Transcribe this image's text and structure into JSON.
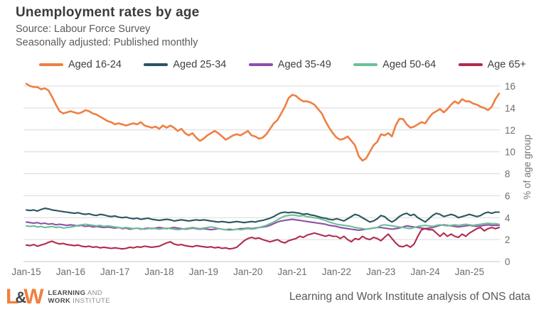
{
  "header": {
    "title": "Unemployment rates by age",
    "source": "Source: Labour Force Survey",
    "note": "Seasonally adjusted: Published monthly"
  },
  "chart_data": {
    "type": "line",
    "x_frequency": "monthly",
    "x_start": "Jan-2015",
    "x_end": "Sep-2025",
    "x_tick_labels": [
      "Jan-15",
      "Jan-16",
      "Jan-17",
      "Jan-18",
      "Jan-19",
      "Jan-20",
      "Jan-21",
      "Jan-22",
      "Jan-23",
      "Jan-24",
      "Jan-25"
    ],
    "x_tick_month_indices": [
      0,
      12,
      24,
      36,
      48,
      60,
      72,
      84,
      96,
      108,
      120
    ],
    "ylabel": "% of age group",
    "ylim": [
      0,
      16
    ],
    "y_ticks": [
      0,
      2,
      4,
      6,
      8,
      10,
      12,
      14,
      16
    ],
    "grid": "horizontal",
    "legend_position": "top",
    "series": [
      {
        "name": "Aged 16-24",
        "color": "#EE8043",
        "values": [
          16.2,
          16.0,
          15.9,
          15.9,
          15.7,
          15.8,
          15.6,
          15.0,
          14.3,
          13.7,
          13.5,
          13.6,
          13.7,
          13.6,
          13.5,
          13.6,
          13.8,
          13.7,
          13.5,
          13.4,
          13.2,
          13.0,
          12.8,
          12.7,
          12.5,
          12.6,
          12.5,
          12.4,
          12.5,
          12.6,
          12.5,
          12.7,
          12.4,
          12.3,
          12.2,
          12.3,
          12.1,
          12.4,
          12.2,
          12.4,
          12.2,
          11.9,
          12.1,
          11.7,
          11.5,
          11.7,
          11.3,
          11.0,
          11.2,
          11.5,
          11.7,
          11.9,
          11.7,
          11.4,
          11.1,
          11.3,
          11.5,
          11.6,
          11.5,
          11.7,
          11.9,
          11.5,
          11.4,
          11.2,
          11.3,
          11.6,
          12.1,
          12.6,
          12.9,
          13.5,
          14.1,
          14.9,
          15.2,
          15.1,
          14.8,
          14.6,
          14.6,
          14.5,
          14.3,
          13.9,
          13.5,
          12.8,
          12.2,
          11.7,
          11.3,
          11.1,
          11.2,
          11.4,
          11.0,
          10.6,
          9.6,
          9.2,
          9.4,
          10.0,
          10.6,
          10.9,
          11.6,
          11.5,
          11.7,
          11.4,
          12.4,
          13.0,
          13.0,
          12.5,
          12.2,
          12.3,
          12.5,
          12.7,
          12.6,
          13.1,
          13.5,
          13.7,
          13.9,
          13.6,
          13.9,
          14.3,
          14.6,
          14.4,
          14.8,
          14.6,
          14.6,
          14.4,
          14.3,
          14.1,
          14.0,
          13.8,
          14.1,
          14.8,
          15.3
        ]
      },
      {
        "name": "Aged 25-34",
        "color": "#2A5560",
        "values": [
          4.7,
          4.65,
          4.7,
          4.6,
          4.75,
          4.85,
          4.8,
          4.7,
          4.65,
          4.6,
          4.55,
          4.5,
          4.45,
          4.4,
          4.45,
          4.35,
          4.3,
          4.35,
          4.25,
          4.2,
          4.3,
          4.25,
          4.15,
          4.1,
          4.15,
          4.05,
          4.0,
          4.05,
          3.95,
          3.9,
          3.95,
          3.85,
          3.9,
          3.95,
          3.85,
          3.8,
          3.75,
          3.8,
          3.85,
          3.8,
          3.7,
          3.75,
          3.8,
          3.75,
          3.7,
          3.75,
          3.8,
          3.75,
          3.8,
          3.75,
          3.7,
          3.65,
          3.6,
          3.65,
          3.6,
          3.55,
          3.6,
          3.65,
          3.6,
          3.55,
          3.6,
          3.65,
          3.6,
          3.7,
          3.75,
          3.85,
          3.95,
          4.1,
          4.3,
          4.45,
          4.5,
          4.45,
          4.5,
          4.45,
          4.4,
          4.3,
          4.35,
          4.25,
          4.2,
          4.1,
          4.0,
          3.95,
          3.85,
          3.8,
          3.9,
          3.8,
          3.7,
          3.9,
          4.1,
          4.3,
          4.2,
          4.0,
          3.8,
          3.6,
          3.7,
          3.9,
          4.2,
          4.1,
          3.8,
          3.6,
          3.8,
          4.1,
          4.3,
          4.4,
          4.2,
          4.3,
          4.0,
          3.8,
          3.6,
          3.9,
          4.2,
          4.4,
          4.3,
          4.1,
          4.2,
          4.3,
          4.2,
          4.0,
          4.1,
          4.2,
          4.3,
          4.2,
          4.1,
          4.2,
          4.4,
          4.5,
          4.4,
          4.5,
          4.5
        ]
      },
      {
        "name": "Aged 35-49",
        "color": "#8F4FA8",
        "values": [
          3.6,
          3.55,
          3.5,
          3.55,
          3.45,
          3.5,
          3.4,
          3.45,
          3.35,
          3.4,
          3.35,
          3.3,
          3.35,
          3.3,
          3.25,
          3.3,
          3.2,
          3.25,
          3.15,
          3.2,
          3.15,
          3.1,
          3.15,
          3.1,
          3.05,
          3.1,
          3.0,
          3.05,
          2.95,
          3.0,
          3.05,
          2.95,
          3.0,
          3.05,
          3.0,
          3.05,
          3.1,
          3.05,
          3.0,
          3.05,
          3.1,
          3.05,
          3.0,
          2.95,
          3.0,
          3.05,
          3.0,
          2.95,
          3.0,
          2.95,
          2.9,
          2.95,
          3.0,
          2.95,
          2.9,
          2.95,
          2.9,
          2.95,
          3.0,
          3.0,
          3.05,
          3.0,
          3.05,
          3.1,
          3.15,
          3.2,
          3.3,
          3.45,
          3.6,
          3.7,
          3.75,
          3.8,
          3.85,
          3.8,
          3.75,
          3.7,
          3.65,
          3.6,
          3.55,
          3.5,
          3.45,
          3.4,
          3.3,
          3.25,
          3.2,
          3.1,
          3.05,
          3.0,
          2.95,
          2.9,
          2.85,
          2.9,
          2.95,
          3.0,
          3.05,
          3.1,
          3.1,
          3.05,
          3.0,
          2.95,
          3.0,
          3.05,
          3.15,
          3.25,
          3.2,
          3.15,
          3.1,
          3.05,
          3.0,
          3.05,
          3.1,
          3.2,
          3.3,
          3.35,
          3.3,
          3.25,
          3.2,
          3.15,
          3.2,
          3.25,
          3.3,
          3.25,
          3.2,
          3.25,
          3.3,
          3.35,
          3.3,
          3.3,
          3.3
        ]
      },
      {
        "name": "Aged 50-64",
        "color": "#6CC096",
        "values": [
          3.25,
          3.2,
          3.25,
          3.15,
          3.2,
          3.1,
          3.15,
          3.2,
          3.1,
          3.15,
          3.05,
          3.1,
          3.15,
          3.2,
          3.3,
          3.35,
          3.4,
          3.35,
          3.3,
          3.25,
          3.3,
          3.2,
          3.25,
          3.2,
          3.15,
          3.1,
          3.05,
          3.1,
          3.05,
          3.0,
          3.05,
          3.0,
          2.95,
          3.0,
          3.05,
          3.0,
          2.95,
          3.0,
          3.05,
          3.0,
          2.95,
          2.9,
          2.95,
          3.0,
          3.05,
          3.1,
          3.05,
          3.0,
          3.05,
          3.1,
          3.15,
          3.1,
          3.0,
          2.95,
          2.9,
          2.85,
          2.9,
          2.95,
          2.9,
          2.95,
          3.0,
          2.95,
          3.0,
          3.1,
          3.2,
          3.3,
          3.45,
          3.6,
          3.8,
          4.0,
          4.15,
          4.2,
          4.25,
          4.2,
          4.15,
          4.2,
          4.1,
          4.05,
          4.0,
          3.95,
          3.85,
          3.75,
          3.6,
          3.5,
          3.4,
          3.35,
          3.3,
          3.25,
          3.2,
          3.1,
          3.05,
          3.0,
          2.95,
          3.0,
          3.05,
          3.1,
          3.3,
          3.35,
          3.3,
          3.25,
          3.2,
          3.15,
          3.1,
          3.05,
          3.0,
          3.1,
          3.2,
          3.25,
          3.3,
          3.25,
          3.2,
          3.3,
          3.35,
          3.3,
          3.25,
          3.3,
          3.35,
          3.3,
          3.35,
          3.4,
          3.35,
          3.3,
          3.35,
          3.4,
          3.45,
          3.5,
          3.45,
          3.45,
          3.4
        ]
      },
      {
        "name": "Age 65+",
        "color": "#B02A4C",
        "values": [
          1.5,
          1.45,
          1.55,
          1.4,
          1.5,
          1.6,
          1.75,
          1.85,
          1.7,
          1.6,
          1.65,
          1.55,
          1.5,
          1.45,
          1.5,
          1.4,
          1.35,
          1.4,
          1.3,
          1.35,
          1.25,
          1.3,
          1.25,
          1.2,
          1.25,
          1.2,
          1.15,
          1.2,
          1.3,
          1.25,
          1.35,
          1.3,
          1.4,
          1.35,
          1.3,
          1.35,
          1.4,
          1.55,
          1.7,
          1.8,
          1.6,
          1.5,
          1.55,
          1.45,
          1.4,
          1.35,
          1.45,
          1.4,
          1.35,
          1.3,
          1.35,
          1.25,
          1.3,
          1.2,
          1.25,
          1.15,
          1.2,
          1.3,
          1.6,
          1.9,
          2.1,
          2.2,
          2.1,
          2.15,
          2.0,
          1.9,
          1.8,
          1.9,
          2.0,
          1.8,
          1.7,
          1.9,
          2.0,
          2.1,
          2.3,
          2.2,
          2.4,
          2.5,
          2.6,
          2.5,
          2.4,
          2.3,
          2.4,
          2.3,
          2.3,
          2.1,
          2.3,
          2.0,
          1.8,
          2.1,
          2.0,
          2.3,
          2.1,
          2.0,
          2.2,
          2.1,
          1.9,
          2.2,
          2.5,
          2.1,
          1.7,
          1.4,
          1.35,
          1.5,
          1.3,
          1.6,
          2.3,
          2.9,
          3.0,
          2.9,
          2.9,
          2.6,
          2.3,
          2.6,
          2.3,
          2.5,
          2.3,
          2.2,
          2.5,
          2.3,
          2.6,
          2.8,
          3.0,
          3.1,
          2.8,
          3.0,
          3.1,
          3.0,
          3.1
        ]
      }
    ]
  },
  "footer": {
    "logo": {
      "letter_l": "L",
      "ampersand": "&",
      "letter_w": "W",
      "line1_bold": "LEARNING",
      "line1_rest": " AND",
      "line2_bold": "WORK",
      "line2_rest": " INSTITUTE"
    },
    "credit": "Learning and Work Institute analysis of ONS data"
  },
  "colors": {
    "grid": "#D9D9D9",
    "axis": "#C6C6C6",
    "tick_text": "#6E6E6E",
    "title_text": "#3B3B3B",
    "brand_orange": "#F0803C"
  }
}
